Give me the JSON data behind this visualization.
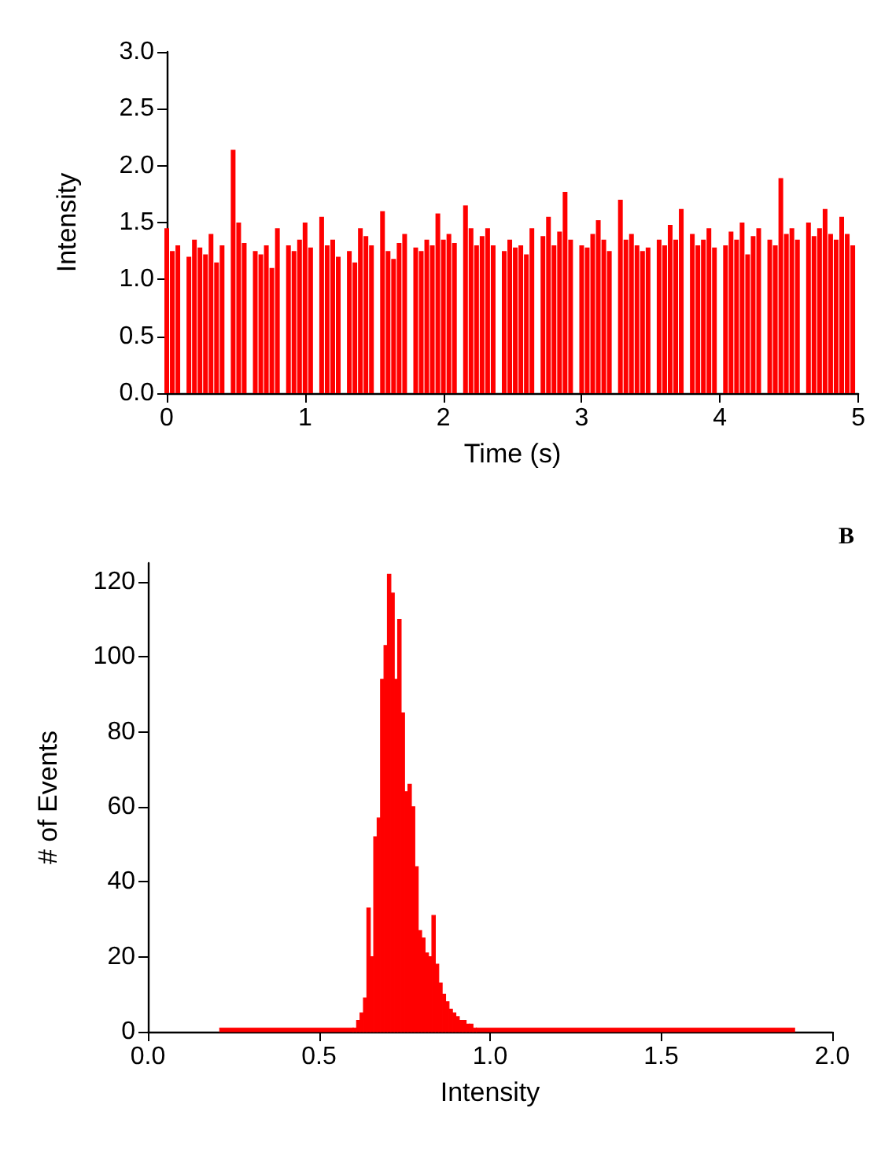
{
  "chart_data": [
    {
      "type": "bar",
      "xlabel": "Time (s)",
      "ylabel": "Intensity",
      "x": [
        0,
        0.04,
        0.08,
        0.12,
        0.16,
        0.2,
        0.24,
        0.28,
        0.32,
        0.36,
        0.4,
        0.44,
        0.48,
        0.52,
        0.56,
        0.6,
        0.64,
        0.68,
        0.72,
        0.76,
        0.8,
        0.84,
        0.88,
        0.92,
        0.96,
        1,
        1.04,
        1.08,
        1.12,
        1.16,
        1.2,
        1.24,
        1.28,
        1.32,
        1.36,
        1.4,
        1.44,
        1.48,
        1.52,
        1.56,
        1.6,
        1.64,
        1.68,
        1.72,
        1.76,
        1.8,
        1.84,
        1.88,
        1.92,
        1.96,
        2,
        2.04,
        2.08,
        2.12,
        2.16,
        2.2,
        2.24,
        2.28,
        2.32,
        2.36,
        2.4,
        2.44,
        2.48,
        2.52,
        2.56,
        2.6,
        2.64,
        2.68,
        2.72,
        2.76,
        2.8,
        2.84,
        2.88,
        2.92,
        2.96,
        3,
        3.04,
        3.08,
        3.12,
        3.16,
        3.2,
        3.24,
        3.28,
        3.32,
        3.36,
        3.4,
        3.44,
        3.48,
        3.52,
        3.56,
        3.6,
        3.64,
        3.68,
        3.72,
        3.76,
        3.8,
        3.84,
        3.88,
        3.92,
        3.96,
        4,
        4.04,
        4.08,
        4.12,
        4.16,
        4.2,
        4.24,
        4.28,
        4.32,
        4.36,
        4.4,
        4.44,
        4.48,
        4.52,
        4.56,
        4.6,
        4.64,
        4.68,
        4.72,
        4.76,
        4.8,
        4.84,
        4.88,
        4.92,
        4.96
      ],
      "values": [
        1.45,
        1.25,
        1.3,
        0,
        1.2,
        1.35,
        1.28,
        1.22,
        1.4,
        1.15,
        1.3,
        0,
        2.14,
        1.5,
        1.32,
        0,
        1.25,
        1.22,
        1.3,
        1.1,
        1.45,
        0,
        1.3,
        1.25,
        1.35,
        1.5,
        1.28,
        0,
        1.55,
        1.3,
        1.35,
        1.2,
        0,
        1.25,
        1.15,
        1.45,
        1.38,
        1.3,
        0,
        1.6,
        1.25,
        1.18,
        1.32,
        1.4,
        0,
        1.28,
        1.25,
        1.35,
        1.3,
        1.58,
        1.35,
        1.4,
        1.32,
        0,
        1.65,
        1.45,
        1.3,
        1.38,
        1.45,
        1.3,
        0,
        1.25,
        1.35,
        1.28,
        1.3,
        1.22,
        1.45,
        0,
        1.38,
        1.55,
        1.3,
        1.42,
        1.77,
        1.35,
        0,
        1.3,
        1.28,
        1.4,
        1.52,
        1.35,
        1.25,
        0,
        1.7,
        1.35,
        1.4,
        1.3,
        1.25,
        1.28,
        0,
        1.35,
        1.3,
        1.48,
        1.35,
        1.62,
        0,
        1.4,
        1.3,
        1.35,
        1.45,
        1.28,
        0,
        1.3,
        1.42,
        1.35,
        1.5,
        1.22,
        1.38,
        1.45,
        0,
        1.35,
        1.3,
        1.89,
        1.4,
        1.45,
        1.35,
        0,
        1.5,
        1.38,
        1.45,
        1.62,
        1.4,
        1.35,
        1.55,
        1.4,
        1.3
      ],
      "color": "#ff0000",
      "xlim": [
        0,
        5
      ],
      "xticks": [
        0,
        1,
        2,
        3,
        4,
        5
      ],
      "ylim": [
        0,
        3
      ],
      "yticks": [
        {
          "value": 0,
          "label": "0.0"
        },
        0.5,
        {
          "value": 1,
          "label": "1.0"
        },
        1.5,
        {
          "value": 2,
          "label": "2.0"
        },
        2.5,
        {
          "value": 3,
          "label": "3.0"
        }
      ],
      "grid": false
    },
    {
      "type": "histogram",
      "xlabel": "Intensity",
      "ylabel": "# of Events",
      "annotations": [
        "B"
      ],
      "bins": [
        0.21,
        0.6,
        0.61,
        0.62,
        0.63,
        0.64,
        0.65,
        0.66,
        0.67,
        0.68,
        0.69,
        0.7,
        0.71,
        0.72,
        0.73,
        0.74,
        0.75,
        0.76,
        0.77,
        0.78,
        0.79,
        0.8,
        0.81,
        0.82,
        0.83,
        0.84,
        0.85,
        0.86,
        0.87,
        0.88,
        0.89,
        0.9,
        0.91,
        0.92,
        0.93,
        0.94,
        0.95,
        0.96,
        1.89
      ],
      "values": [
        1,
        1,
        3,
        5,
        9,
        33,
        20,
        52,
        57,
        94,
        103,
        122,
        117,
        94,
        110,
        85,
        64,
        66,
        60,
        44,
        27,
        25,
        21,
        20,
        31,
        18,
        13,
        10,
        8,
        6,
        5,
        4,
        3,
        3,
        2,
        2,
        1,
        1
      ],
      "color": "#ff0000",
      "xlim": [
        0,
        2
      ],
      "xticks": [
        {
          "value": 0,
          "label": "0.0"
        },
        0.5,
        {
          "value": 1,
          "label": "1.0"
        },
        1.5,
        {
          "value": 2,
          "label": "2.0"
        }
      ],
      "ylim": [
        0,
        125
      ],
      "yticks": [
        0,
        20,
        40,
        60,
        80,
        100,
        120
      ],
      "grid": false
    }
  ]
}
